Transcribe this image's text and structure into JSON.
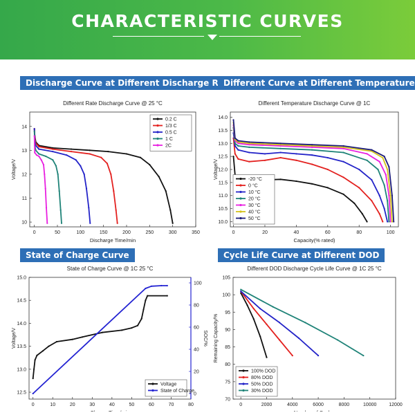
{
  "page": {
    "title": "CHARACTERISTIC CURVES"
  },
  "panels": [
    {
      "header": "Discharge Curve at Different Discharge Rate"
    },
    {
      "header": "Different Curve at Different Temperature"
    },
    {
      "header": "State of Charge Curve"
    },
    {
      "header": "Cycle Life Curve at Different DOD"
    }
  ],
  "chart_data": [
    {
      "type": "line",
      "title": "Different Rate Discharge Curve @ 25 °C",
      "xlabel": "Discharge Time/min",
      "ylabel": "Voltage/V",
      "xlim": [
        -10,
        350
      ],
      "ylim": [
        9.8,
        14.6
      ],
      "xticks": [
        0,
        50,
        100,
        150,
        200,
        250,
        300,
        350
      ],
      "yticks": [
        10,
        11,
        12,
        13,
        14
      ],
      "legend_position": "top-right",
      "series": [
        {
          "name": "0.2 C",
          "color": "#111111",
          "points": [
            [
              0,
              13.9
            ],
            [
              1,
              13.6
            ],
            [
              3,
              13.35
            ],
            [
              10,
              13.2
            ],
            [
              40,
              13.1
            ],
            [
              80,
              13.05
            ],
            [
              120,
              13.0
            ],
            [
              160,
              12.95
            ],
            [
              200,
              12.85
            ],
            [
              230,
              12.7
            ],
            [
              250,
              12.4
            ],
            [
              270,
              11.9
            ],
            [
              285,
              11.3
            ],
            [
              295,
              10.5
            ],
            [
              300,
              9.95
            ]
          ]
        },
        {
          "name": "1/3 C",
          "color": "#e3211f",
          "points": [
            [
              0,
              13.9
            ],
            [
              1,
              13.5
            ],
            [
              3,
              13.3
            ],
            [
              10,
              13.15
            ],
            [
              40,
              13.05
            ],
            [
              80,
              12.95
            ],
            [
              120,
              12.85
            ],
            [
              145,
              12.7
            ],
            [
              158,
              12.45
            ],
            [
              166,
              12.0
            ],
            [
              172,
              11.3
            ],
            [
              177,
              10.5
            ],
            [
              180,
              9.95
            ]
          ]
        },
        {
          "name": "0.5 C",
          "color": "#2323c8",
          "points": [
            [
              0,
              13.9
            ],
            [
              1,
              13.4
            ],
            [
              3,
              13.2
            ],
            [
              10,
              13.05
            ],
            [
              40,
              12.95
            ],
            [
              70,
              12.8
            ],
            [
              90,
              12.6
            ],
            [
              100,
              12.35
            ],
            [
              108,
              12.0
            ],
            [
              113,
              11.4
            ],
            [
              118,
              10.6
            ],
            [
              121,
              9.95
            ]
          ]
        },
        {
          "name": "1 C",
          "color": "#1f8378",
          "points": [
            [
              0,
              13.8
            ],
            [
              1,
              13.2
            ],
            [
              3,
              13.0
            ],
            [
              10,
              12.85
            ],
            [
              25,
              12.75
            ],
            [
              40,
              12.6
            ],
            [
              47,
              12.35
            ],
            [
              51,
              12.0
            ],
            [
              54,
              11.3
            ],
            [
              57,
              10.5
            ],
            [
              59,
              9.95
            ]
          ]
        },
        {
          "name": "2C",
          "color": "#e820e0",
          "points": [
            [
              0,
              13.6
            ],
            [
              1,
              12.9
            ],
            [
              5,
              12.8
            ],
            [
              10,
              12.75
            ],
            [
              15,
              12.6
            ],
            [
              20,
              12.4
            ],
            [
              22,
              12.0
            ],
            [
              24,
              11.4
            ],
            [
              26,
              10.6
            ],
            [
              28,
              9.95
            ]
          ]
        }
      ]
    },
    {
      "type": "line",
      "title": "Different Temperature Discharge Curve @ 1C",
      "xlabel": "Capacity(% rated)",
      "ylabel": "Voltage/V",
      "xlim": [
        -2,
        105
      ],
      "ylim": [
        9.8,
        14.2
      ],
      "xticks": [
        0,
        20,
        40,
        60,
        80,
        100
      ],
      "yticks": [
        10.0,
        10.5,
        11.0,
        11.5,
        12.0,
        12.5,
        13.0,
        13.5,
        14.0
      ],
      "legend_position": "bottom-left",
      "series": [
        {
          "name": "-20 °C",
          "color": "#111111",
          "points": [
            [
              0,
              12.5
            ],
            [
              1,
              11.8
            ],
            [
              3,
              11.6
            ],
            [
              10,
              11.55
            ],
            [
              20,
              11.6
            ],
            [
              30,
              11.62
            ],
            [
              40,
              11.55
            ],
            [
              50,
              11.45
            ],
            [
              60,
              11.3
            ],
            [
              70,
              11.05
            ],
            [
              77,
              10.7
            ],
            [
              82,
              10.3
            ],
            [
              85,
              10.0
            ]
          ]
        },
        {
          "name": "0 °C",
          "color": "#e3211f",
          "points": [
            [
              0,
              13.2
            ],
            [
              1,
              12.6
            ],
            [
              3,
              12.4
            ],
            [
              10,
              12.3
            ],
            [
              20,
              12.35
            ],
            [
              30,
              12.45
            ],
            [
              40,
              12.35
            ],
            [
              50,
              12.2
            ],
            [
              60,
              12.0
            ],
            [
              70,
              11.7
            ],
            [
              80,
              11.3
            ],
            [
              88,
              10.8
            ],
            [
              93,
              10.3
            ],
            [
              95,
              10.0
            ]
          ]
        },
        {
          "name": "10 °C",
          "color": "#2323c8",
          "points": [
            [
              0,
              13.4
            ],
            [
              1,
              12.9
            ],
            [
              3,
              12.75
            ],
            [
              10,
              12.65
            ],
            [
              20,
              12.6
            ],
            [
              30,
              12.65
            ],
            [
              40,
              12.6
            ],
            [
              50,
              12.55
            ],
            [
              60,
              12.45
            ],
            [
              70,
              12.3
            ],
            [
              80,
              12.0
            ],
            [
              88,
              11.6
            ],
            [
              93,
              11.0
            ],
            [
              96,
              10.5
            ],
            [
              98,
              10.0
            ]
          ]
        },
        {
          "name": "20 °C",
          "color": "#1f8378",
          "points": [
            [
              0,
              13.6
            ],
            [
              1,
              13.0
            ],
            [
              3,
              12.9
            ],
            [
              10,
              12.85
            ],
            [
              30,
              12.8
            ],
            [
              50,
              12.75
            ],
            [
              70,
              12.65
            ],
            [
              85,
              12.35
            ],
            [
              92,
              12.0
            ],
            [
              96,
              11.4
            ],
            [
              98,
              10.8
            ],
            [
              99,
              10.0
            ]
          ]
        },
        {
          "name": "30 °C",
          "color": "#e820e0",
          "points": [
            [
              0,
              13.7
            ],
            [
              1,
              13.1
            ],
            [
              3,
              13.0
            ],
            [
              10,
              12.95
            ],
            [
              30,
              12.9
            ],
            [
              50,
              12.85
            ],
            [
              70,
              12.8
            ],
            [
              85,
              12.6
            ],
            [
              93,
              12.3
            ],
            [
              97,
              11.8
            ],
            [
              99,
              11.0
            ],
            [
              100,
              10.0
            ]
          ]
        },
        {
          "name": "40 °C",
          "color": "#d4c21c",
          "points": [
            [
              0,
              13.8
            ],
            [
              1,
              13.15
            ],
            [
              3,
              13.05
            ],
            [
              10,
              13.0
            ],
            [
              30,
              12.95
            ],
            [
              50,
              12.9
            ],
            [
              70,
              12.85
            ],
            [
              88,
              12.7
            ],
            [
              95,
              12.45
            ],
            [
              98,
              12.0
            ],
            [
              100,
              11.0
            ],
            [
              101,
              10.0
            ]
          ]
        },
        {
          "name": "50 °C",
          "color": "#1b1b7a",
          "points": [
            [
              0,
              13.9
            ],
            [
              1,
              13.2
            ],
            [
              3,
              13.1
            ],
            [
              10,
              13.05
            ],
            [
              30,
              13.0
            ],
            [
              50,
              12.95
            ],
            [
              70,
              12.9
            ],
            [
              88,
              12.75
            ],
            [
              96,
              12.5
            ],
            [
              99,
              12.1
            ],
            [
              101,
              11.0
            ],
            [
              102,
              10.0
            ]
          ]
        }
      ]
    },
    {
      "type": "line",
      "title": "State of Charge Curve @ 1C  25 °C",
      "xlabel": "Charge Time/min",
      "ylabel": "Voltage/V",
      "y2label": "SOC/%",
      "xlim": [
        -2,
        80
      ],
      "ylim": [
        12.35,
        15.0
      ],
      "y2lim": [
        -5,
        105
      ],
      "xticks": [
        0,
        10,
        20,
        30,
        40,
        50,
        60,
        70,
        80
      ],
      "yticks": [
        12.5,
        13.0,
        13.5,
        14.0,
        14.5,
        15.0
      ],
      "y2ticks": [
        0,
        20,
        40,
        60,
        80,
        100
      ],
      "legend_position": "bottom-right",
      "series": [
        {
          "name": "Voltage",
          "color": "#111111",
          "axis": "left",
          "points": [
            [
              0,
              12.8
            ],
            [
              0.5,
              13.0
            ],
            [
              1,
              13.2
            ],
            [
              2,
              13.3
            ],
            [
              5,
              13.4
            ],
            [
              8,
              13.5
            ],
            [
              12,
              13.6
            ],
            [
              20,
              13.65
            ],
            [
              25,
              13.7
            ],
            [
              35,
              13.8
            ],
            [
              45,
              13.85
            ],
            [
              50,
              13.9
            ],
            [
              53,
              13.95
            ],
            [
              55,
              14.1
            ],
            [
              56,
              14.3
            ],
            [
              57,
              14.5
            ],
            [
              58,
              14.6
            ],
            [
              68,
              14.6
            ]
          ]
        },
        {
          "name": "State of Charge",
          "color": "#2323d2",
          "axis": "right",
          "points": [
            [
              0,
              0
            ],
            [
              57,
              95
            ],
            [
              60,
              97
            ],
            [
              65,
              97.5
            ],
            [
              68,
              97.5
            ]
          ]
        }
      ]
    },
    {
      "type": "line",
      "title": "Different DOD Discharge Cycle Life Curve @ 1C 25 °C",
      "xlabel": "Number of Cycles",
      "ylabel": "Remaining Capacity/%",
      "xlim": [
        -600,
        12000
      ],
      "ylim": [
        70,
        105
      ],
      "xticks": [
        0,
        2000,
        4000,
        6000,
        8000,
        10000,
        12000
      ],
      "yticks": [
        70,
        75,
        80,
        85,
        90,
        95,
        100,
        105
      ],
      "legend_position": "bottom-left",
      "series": [
        {
          "name": "100% DOD",
          "color": "#111111",
          "points": [
            [
              0,
              100.5
            ],
            [
              500,
              97
            ],
            [
              1000,
              93
            ],
            [
              1500,
              88
            ],
            [
              2000,
              82
            ]
          ]
        },
        {
          "name": "80% DOD",
          "color": "#e3211f",
          "points": [
            [
              0,
              101
            ],
            [
              1000,
              96
            ],
            [
              2000,
              91.5
            ],
            [
              3000,
              87
            ],
            [
              4000,
              82.5
            ]
          ]
        },
        {
          "name": "50% DOD",
          "color": "#2323c8",
          "points": [
            [
              0,
              101
            ],
            [
              1500,
              96
            ],
            [
              3000,
              92
            ],
            [
              4500,
              87.5
            ],
            [
              6000,
              82.5
            ]
          ]
        },
        {
          "name": "30% DOD",
          "color": "#1f8378",
          "points": [
            [
              0,
              101.5
            ],
            [
              2500,
              96.5
            ],
            [
              5000,
              92
            ],
            [
              7500,
              87
            ],
            [
              9500,
              82.5
            ]
          ]
        }
      ]
    }
  ]
}
